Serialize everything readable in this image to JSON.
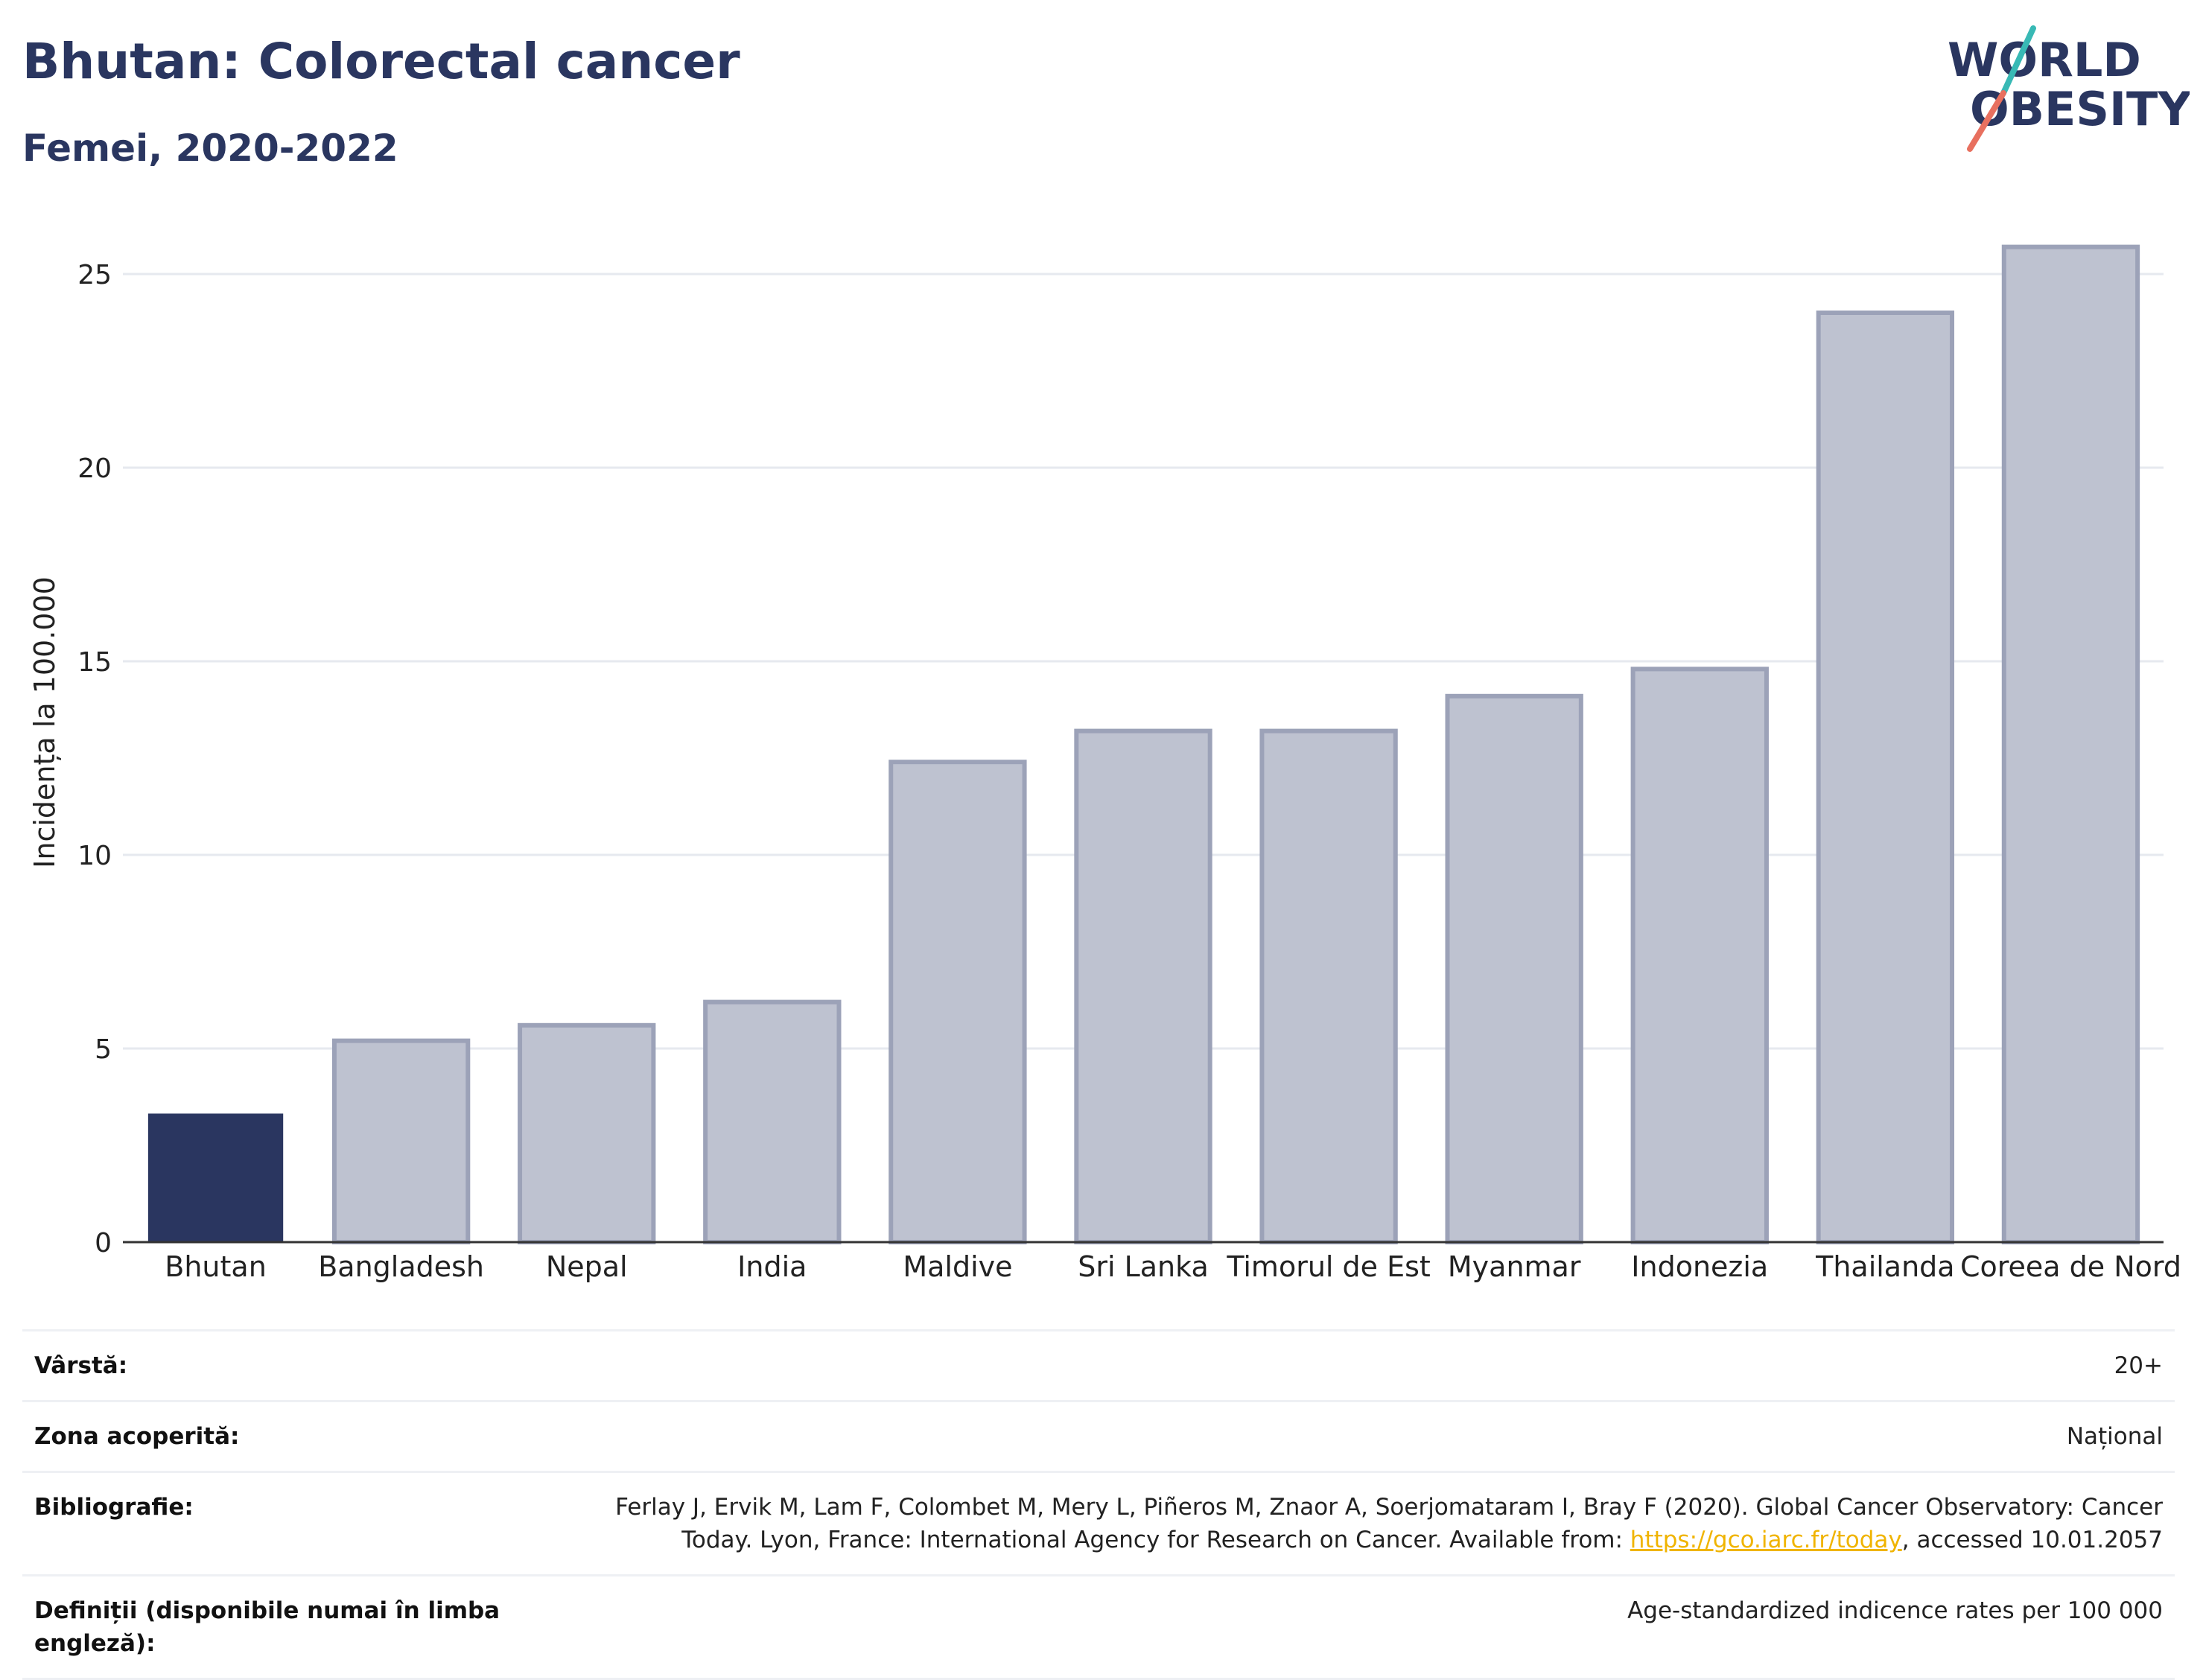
{
  "header": {
    "title": "Bhutan: Colorectal cancer",
    "subtitle": "Femei, 2020-2022"
  },
  "logo": {
    "line1": "WORLD",
    "line2": "OBESITY"
  },
  "colors": {
    "highlight": "#2a3660",
    "bar_fill": "#bec2d0",
    "bar_stroke": "#9ca2b8",
    "grid": "#e6e9ef",
    "axis": "#333333",
    "logo_teal": "#38b9b5",
    "logo_coral": "#e8705f",
    "link": "#f0b400"
  },
  "chart_data": {
    "type": "bar",
    "title": "Bhutan: Colorectal cancer",
    "subtitle": "Femei, 2020-2022",
    "xlabel": "",
    "ylabel": "Incidența la 100.000",
    "ylim": [
      0,
      26.5
    ],
    "yticks": [
      0,
      5,
      10,
      15,
      20,
      25
    ],
    "grid": true,
    "highlight_category": "Bhutan",
    "categories": [
      "Bhutan",
      "Bangladesh",
      "Nepal",
      "India",
      "Maldive",
      "Sri Lanka",
      "Timorul de Est",
      "Myanmar",
      "Indonezia",
      "Thailanda",
      "Coreea de Nord"
    ],
    "values": [
      3.3,
      5.2,
      5.6,
      6.2,
      12.4,
      13.2,
      13.2,
      14.1,
      14.8,
      24.0,
      25.7
    ]
  },
  "meta": {
    "rows": [
      {
        "label": "Vârstă:",
        "value": "20+"
      },
      {
        "label": "Zona acoperită:",
        "value": "Național"
      },
      {
        "label": "Bibliografie:",
        "value_before": "Ferlay J, Ervik M, Lam F, Colombet M, Mery L, Piñeros M, Znaor A, Soerjomataram I, Bray F (2020). Global Cancer Observatory: Cancer Today. Lyon, France: International Agency for Research on Cancer. Available from: ",
        "link": "https://gco.iarc.fr/today",
        "value_after": ", accessed 10.01.2057"
      },
      {
        "label": "Definiții (disponibile numai în limba engleză):",
        "value": "Age-standardized indicence rates per 100 000"
      }
    ]
  }
}
